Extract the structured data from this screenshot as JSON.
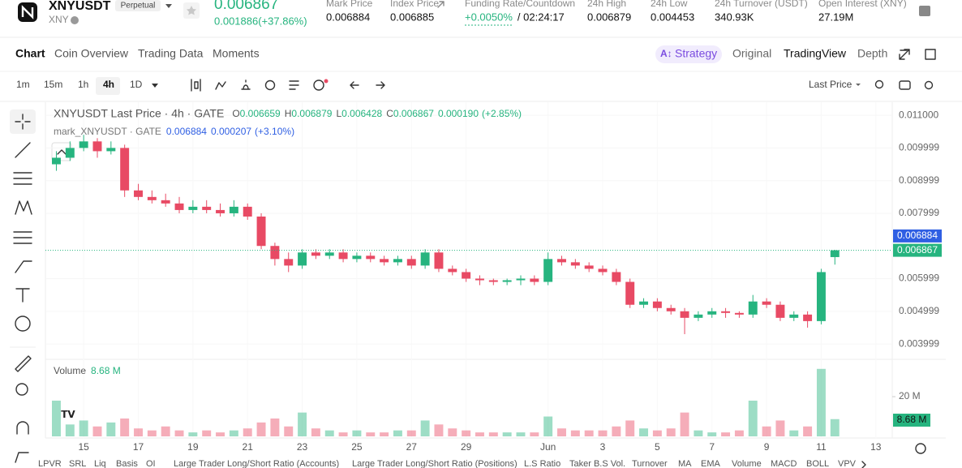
{
  "header": {
    "symbol": "XNYUSDT",
    "contract": "Perpetual",
    "base": "XNY",
    "price": "0.006867",
    "change": "0.001886(+37.86%)",
    "stats": [
      {
        "label": "Mark Price",
        "value": "0.006884"
      },
      {
        "label": "Index Price",
        "value": "0.006885"
      },
      {
        "label": "24h High",
        "value": "0.006879"
      },
      {
        "label": "24h Low",
        "value": "0.004453"
      },
      {
        "label": "24h Turnover (USDT)",
        "value": "340.93K"
      },
      {
        "label": "Open Interest (XNY)",
        "value": "27.19M"
      }
    ],
    "funding": {
      "label": "Funding Rate/Countdown",
      "rate": "+0.0050%",
      "countdown": "/ 02:24:17"
    }
  },
  "tabs": [
    "Chart",
    "Coin Overview",
    "Trading Data",
    "Moments"
  ],
  "views": [
    "Strategy",
    "Original",
    "TradingView",
    "Depth"
  ],
  "intervals": [
    "1m",
    "15m",
    "1h",
    "4h",
    "1D"
  ],
  "price_source": "Last Price",
  "indicators": [
    "LPVR",
    "SRL",
    "Liq",
    "Basis",
    "OI",
    "Large Trader Long/Short Ratio (Accounts)",
    "Large Trader Long/Short Ratio (Positions)",
    "L.S Ratio",
    "Taker B.S Vol.",
    "Turnover",
    "MA",
    "EMA",
    "Volume",
    "MACD",
    "BOLL",
    "VPV"
  ],
  "chart_data": {
    "type": "candlestick",
    "legend": {
      "title": "XNYUSDT Last Price · 4h · GATE",
      "ohlc": [
        {
          "key": "O",
          "value": "0.006659"
        },
        {
          "key": "H",
          "value": "0.006879"
        },
        {
          "key": "L",
          "value": "0.006428"
        },
        {
          "key": "C",
          "value": "0.006867"
        }
      ],
      "change": "0.000190",
      "change_pct": "(+2.85%)",
      "mark_title": "mark_XNYUSDT · GATE",
      "mark_value": "0.006884",
      "mark_change": "0.000207",
      "mark_change_pct": "(+3.10%)"
    },
    "up_color": "#26b47f",
    "down_color": "#e84a64",
    "x": [
      14,
      14.5,
      15,
      15.5,
      16,
      16.5,
      17,
      17.5,
      18,
      18.5,
      19,
      19.5,
      20,
      20.5,
      21,
      21.5,
      22,
      22.5,
      23,
      23.5,
      24,
      24.5,
      25,
      25.5,
      26,
      26.5,
      27,
      27.5,
      28,
      28.5,
      29,
      29.5,
      30,
      30.5,
      31,
      31.5,
      32,
      32.5,
      33,
      33.5,
      34,
      34.5,
      35,
      35.5,
      36,
      36.5,
      37,
      37.5,
      38,
      38.5,
      39,
      39.5,
      40,
      40.5,
      41,
      41.5,
      42,
      42.5
    ],
    "open": [
      0.0095,
      0.0097,
      0.01,
      0.0102,
      0.0099,
      0.01,
      0.0087,
      0.0085,
      0.0084,
      0.0083,
      0.0081,
      0.0082,
      0.0081,
      0.008,
      0.0082,
      0.0079,
      0.007,
      0.0066,
      0.0064,
      0.0068,
      0.0067,
      0.0068,
      0.0066,
      0.0067,
      0.0066,
      0.0065,
      0.0066,
      0.0064,
      0.0068,
      0.0063,
      0.0062,
      0.006,
      0.00595,
      0.0059,
      0.00595,
      0.006,
      0.0059,
      0.0066,
      0.0065,
      0.0064,
      0.0063,
      0.0062,
      0.0059,
      0.0052,
      0.0053,
      0.0051,
      0.005,
      0.0048,
      0.0049,
      0.005,
      0.00495,
      0.0049,
      0.0053,
      0.0052,
      0.0048,
      0.0049,
      0.0047,
      0.006659
    ],
    "high": [
      0.0099,
      0.0102,
      0.0104,
      0.0103,
      0.0102,
      0.0101,
      0.0089,
      0.0087,
      0.0086,
      0.0085,
      0.0084,
      0.0084,
      0.0083,
      0.0084,
      0.0083,
      0.008,
      0.0071,
      0.0068,
      0.0069,
      0.0069,
      0.0069,
      0.0069,
      0.0068,
      0.0068,
      0.0067,
      0.0067,
      0.0067,
      0.0069,
      0.0069,
      0.0064,
      0.0063,
      0.0061,
      0.006,
      0.006,
      0.0061,
      0.0061,
      0.0068,
      0.0067,
      0.0066,
      0.0065,
      0.0064,
      0.0063,
      0.006,
      0.0054,
      0.0054,
      0.0052,
      0.0051,
      0.005,
      0.0051,
      0.0051,
      0.005,
      0.0055,
      0.0054,
      0.0053,
      0.005,
      0.005,
      0.0063,
      0.006879
    ],
    "low": [
      0.0093,
      0.0096,
      0.0099,
      0.0097,
      0.0098,
      0.0085,
      0.0084,
      0.0083,
      0.0082,
      0.008,
      0.008,
      0.008,
      0.0079,
      0.0079,
      0.0078,
      0.0069,
      0.0064,
      0.0062,
      0.0063,
      0.0066,
      0.0066,
      0.0065,
      0.0065,
      0.0065,
      0.0064,
      0.0064,
      0.0063,
      0.0063,
      0.0062,
      0.0061,
      0.0059,
      0.0058,
      0.0058,
      0.0058,
      0.0058,
      0.0058,
      0.0058,
      0.0064,
      0.0063,
      0.0062,
      0.0061,
      0.0058,
      0.0051,
      0.0051,
      0.005,
      0.0049,
      0.0043,
      0.0047,
      0.0048,
      0.0048,
      0.0048,
      0.0048,
      0.0051,
      0.0047,
      0.0047,
      0.0045,
      0.0046,
      0.006428
    ],
    "close": [
      0.0097,
      0.01,
      0.0102,
      0.0099,
      0.01,
      0.0087,
      0.0085,
      0.0084,
      0.0083,
      0.0081,
      0.0082,
      0.0081,
      0.008,
      0.0082,
      0.0079,
      0.007,
      0.0066,
      0.0064,
      0.0068,
      0.0067,
      0.0068,
      0.0066,
      0.0067,
      0.0066,
      0.0065,
      0.0066,
      0.0064,
      0.0068,
      0.0063,
      0.0062,
      0.006,
      0.00595,
      0.0059,
      0.00595,
      0.006,
      0.0059,
      0.0066,
      0.0065,
      0.0064,
      0.0063,
      0.0062,
      0.0059,
      0.0052,
      0.0053,
      0.0051,
      0.005,
      0.0048,
      0.0049,
      0.005,
      0.00495,
      0.0049,
      0.0053,
      0.0052,
      0.0048,
      0.0049,
      0.0047,
      0.0062,
      0.006867
    ],
    "volume": [
      18000000,
      6000000,
      8000000,
      5000000,
      7000000,
      9000000,
      4000000,
      3000000,
      5000000,
      3000000,
      2000000,
      3000000,
      2000000,
      3000000,
      4000000,
      7000000,
      9000000,
      5000000,
      12000000,
      4000000,
      3000000,
      2000000,
      3000000,
      2000000,
      2000000,
      3000000,
      3000000,
      8000000,
      6000000,
      4000000,
      3000000,
      2000000,
      2000000,
      2000000,
      2000000,
      2000000,
      10000000,
      4000000,
      3000000,
      3000000,
      3000000,
      5000000,
      8000000,
      4000000,
      3000000,
      4000000,
      12000000,
      3000000,
      2000000,
      2000000,
      3000000,
      18000000,
      5000000,
      8000000,
      3000000,
      5000000,
      34000000,
      8680000
    ],
    "volume_title": "Volume",
    "volume_current": "8.68 M",
    "xlim": [
      13.6,
      44.6
    ],
    "xticks": [
      15,
      17,
      19,
      21,
      23,
      25,
      27,
      29,
      {
        "value": 32,
        "label": "Jun"
      },
      {
        "value": 34,
        "label": "3"
      },
      {
        "value": 36,
        "label": "5"
      },
      {
        "value": 38,
        "label": "7"
      },
      {
        "value": 40,
        "label": "9"
      },
      {
        "value": 42,
        "label": "11"
      },
      {
        "value": 44,
        "label": "13"
      }
    ],
    "ylim": [
      0.00353,
      0.0114
    ],
    "yticks": [
      {
        "value": 0.011,
        "label": "0.011000"
      },
      {
        "value": 0.009999,
        "label": "0.009999"
      },
      {
        "value": 0.008999,
        "label": "0.008999"
      },
      {
        "value": 0.007999,
        "label": "0.007999"
      },
      {
        "value": 0.005999,
        "label": "0.005999"
      },
      {
        "value": 0.004999,
        "label": "0.004999"
      },
      {
        "value": 0.003999,
        "label": "0.003999"
      }
    ],
    "mark_price": {
      "value": 0.006884,
      "label": "0.006884"
    },
    "last_price": {
      "value": 0.006867,
      "label": "0.006867"
    },
    "vlim": [
      0,
      38000000
    ],
    "vticks": [
      {
        "value": 20000000,
        "label": "20 M"
      }
    ]
  }
}
